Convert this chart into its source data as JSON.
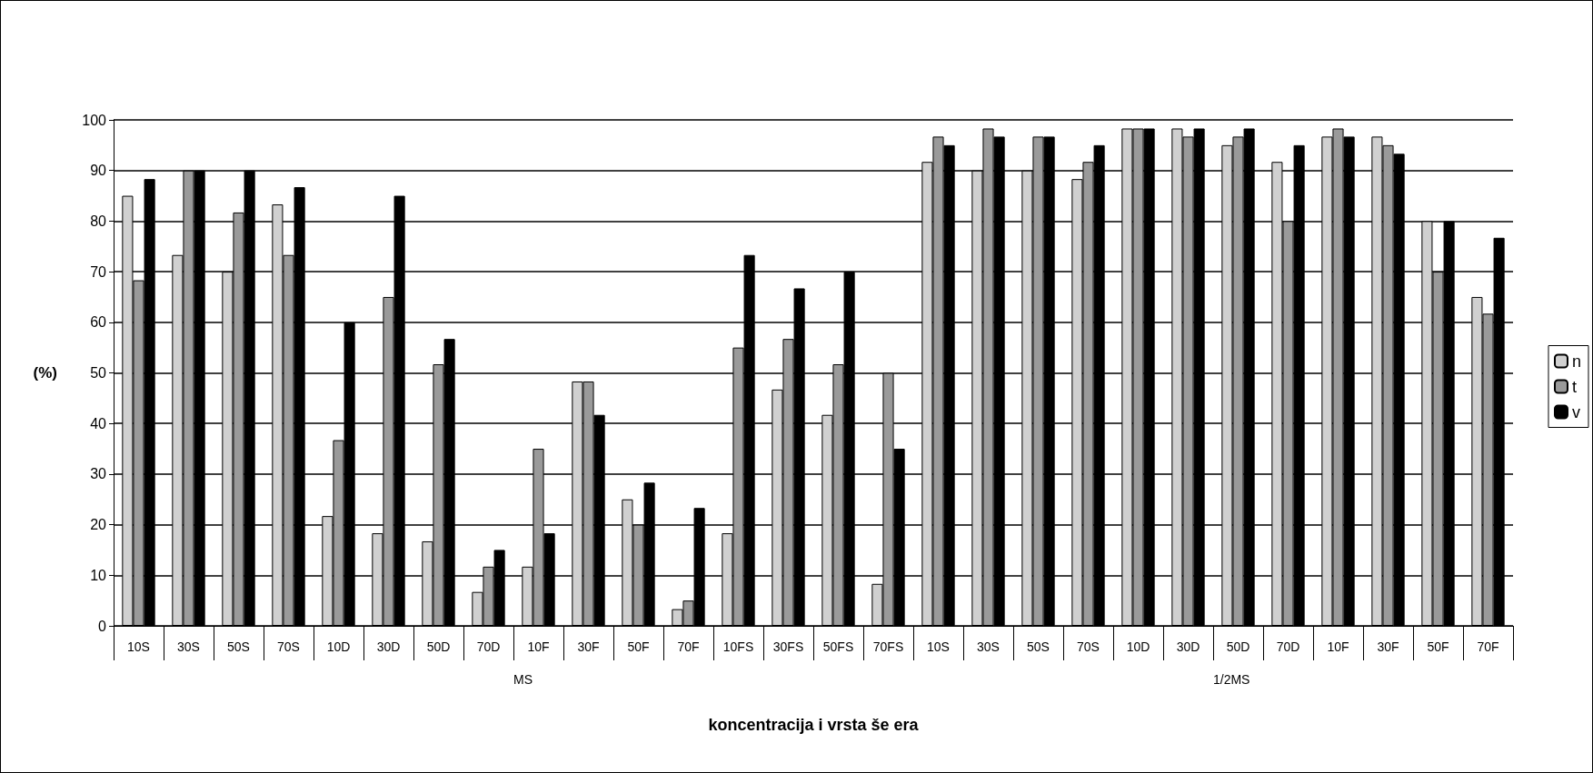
{
  "chart_data": {
    "type": "bar",
    "xlabel": "koncentracija i vrsta še era",
    "ylabel": "(%)",
    "categories": [
      "10S",
      "30S",
      "50S",
      "70S",
      "10D",
      "30D",
      "50D",
      "70D",
      "10F",
      "30F",
      "50F",
      "70F",
      "10FS",
      "30FS",
      "50FS",
      "70FS",
      "10S",
      "30S",
      "50S",
      "70S",
      "10D",
      "30D",
      "50D",
      "70D",
      "10F",
      "30F",
      "50F",
      "70F"
    ],
    "series": [
      {
        "name": "n",
        "color": "#d0d0d0",
        "values": [
          85,
          73.3,
          70,
          83.3,
          21.7,
          18.3,
          16.7,
          6.7,
          11.7,
          48.3,
          25,
          3.3,
          18.3,
          46.7,
          41.7,
          8.3,
          91.7,
          90,
          90,
          88.3,
          98.3,
          98.3,
          95,
          91.7,
          96.7,
          96.7,
          80,
          65
        ]
      },
      {
        "name": "t",
        "color": "#9a9a9a",
        "values": [
          68.3,
          90,
          81.7,
          73.3,
          36.7,
          65,
          51.7,
          11.7,
          35,
          48.3,
          20,
          5,
          55,
          56.7,
          51.7,
          50,
          96.7,
          98.3,
          96.7,
          91.7,
          98.3,
          96.7,
          96.7,
          80,
          98.3,
          95,
          70,
          61.7
        ]
      },
      {
        "name": "v",
        "color": "#000000",
        "values": [
          88.3,
          90,
          90,
          86.7,
          60,
          85,
          56.7,
          15,
          18.3,
          41.7,
          28.3,
          23.3,
          73.3,
          66.7,
          70,
          35,
          95,
          96.7,
          96.7,
          95,
          98.3,
          98.3,
          98.3,
          95,
          96.7,
          93.3,
          80,
          76.7
        ]
      }
    ],
    "ylim": [
      0,
      100
    ],
    "yticks": [
      0,
      10,
      20,
      30,
      40,
      50,
      60,
      70,
      80,
      90,
      100
    ],
    "grid": "y",
    "legend": "right",
    "annotations": [
      "MS",
      "1/2MS"
    ]
  }
}
